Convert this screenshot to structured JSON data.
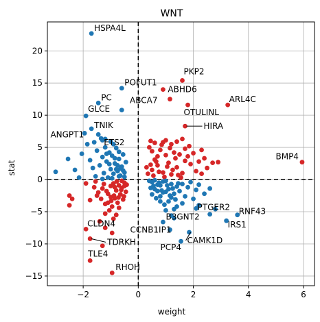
{
  "chart_data": {
    "type": "scatter",
    "title": "WNT",
    "xlabel": "weight",
    "ylabel": "stat",
    "xlim": [
      -3.3,
      6.4
    ],
    "ylim": [
      -16.5,
      24.5
    ],
    "xticks": [
      -2,
      0,
      2,
      4,
      6
    ],
    "yticks": [
      -15,
      -10,
      -5,
      0,
      5,
      10,
      15,
      20
    ],
    "grid": true,
    "reference_lines": {
      "x": 0,
      "y": 0,
      "style": "dashed"
    },
    "colors": {
      "positive": "#d62728",
      "negative": "#1f77b4"
    },
    "annotated_points": [
      {
        "label": "HSPA4L",
        "x": -1.7,
        "y": 22.7,
        "color": "#1f77b4"
      },
      {
        "label": "PKP2",
        "x": 1.6,
        "y": 15.4,
        "color": "#d62728"
      },
      {
        "label": "POFUT1",
        "x": -0.6,
        "y": 14.2,
        "color": "#1f77b4"
      },
      {
        "label": "ABHD6",
        "x": 0.9,
        "y": 14.0,
        "color": "#d62728"
      },
      {
        "label": "PC",
        "x": -1.45,
        "y": 11.9,
        "color": "#1f77b4"
      },
      {
        "label": "ABCA7",
        "x": 1.15,
        "y": 12.5,
        "color": "#d62728"
      },
      {
        "label": "ARL4C",
        "x": 3.25,
        "y": 11.6,
        "color": "#d62728"
      },
      {
        "label": "GLCE",
        "x": -1.9,
        "y": 9.9,
        "color": "#1f77b4"
      },
      {
        "label": "OTULINL",
        "x": 1.8,
        "y": 11.6,
        "color": "#d62728"
      },
      {
        "label": "HIRA",
        "x": 1.7,
        "y": 8.3,
        "color": "#d62728"
      },
      {
        "label": "TNIK",
        "x": -1.7,
        "y": 7.9,
        "color": "#1f77b4"
      },
      {
        "label": "ANGPT1",
        "x": -1.95,
        "y": 7.2,
        "color": "#1f77b4"
      },
      {
        "label": "ETS2",
        "x": -1.3,
        "y": 6.1,
        "color": "#1f77b4"
      },
      {
        "label": "BMP4",
        "x": 5.95,
        "y": 2.7,
        "color": "#d62728"
      },
      {
        "label": "PTGER2",
        "x": 2.1,
        "y": -4.5,
        "color": "#1f77b4"
      },
      {
        "label": "RNF43",
        "x": 3.6,
        "y": -5.5,
        "color": "#1f77b4"
      },
      {
        "label": "B3GNT2",
        "x": 1.3,
        "y": -6.0,
        "color": "#1f77b4"
      },
      {
        "label": "IRS1",
        "x": 3.2,
        "y": -6.4,
        "color": "#1f77b4"
      },
      {
        "label": "CLDN4",
        "x": -1.9,
        "y": -7.7,
        "color": "#d62728"
      },
      {
        "label": "CCNB1IP1",
        "x": 1.15,
        "y": -7.8,
        "color": "#1f77b4"
      },
      {
        "label": "CAMK1D",
        "x": 1.85,
        "y": -8.2,
        "color": "#1f77b4"
      },
      {
        "label": "TDRKH",
        "x": -1.75,
        "y": -9.2,
        "color": "#d62728"
      },
      {
        "label": "PCP4",
        "x": 1.55,
        "y": -9.6,
        "color": "#1f77b4"
      },
      {
        "label": "TLE4",
        "x": -1.75,
        "y": -12.6,
        "color": "#d62728"
      },
      {
        "label": "RHOH",
        "x": -0.95,
        "y": -14.5,
        "color": "#d62728"
      }
    ],
    "other_points_red": [
      [
        -1.75,
        -3.2
      ],
      [
        -1.5,
        -2.5
      ],
      [
        -1.3,
        -1.4
      ],
      [
        -1.2,
        -3.8
      ],
      [
        -1.1,
        -2.2
      ],
      [
        -1.0,
        -1.0
      ],
      [
        -0.95,
        -4.2
      ],
      [
        -0.9,
        -0.6
      ],
      [
        -0.85,
        -2.9
      ],
      [
        -0.8,
        -1.7
      ],
      [
        -0.75,
        -3.6
      ],
      [
        -0.7,
        -0.9
      ],
      [
        -0.65,
        -2.3
      ],
      [
        -0.6,
        -1.3
      ],
      [
        -0.55,
        -3.1
      ],
      [
        -0.5,
        -0.5
      ],
      [
        -0.45,
        -1.9
      ],
      [
        -1.6,
        -1.2
      ],
      [
        -1.45,
        -2.0
      ],
      [
        -1.35,
        -3.0
      ],
      [
        -1.25,
        -0.7
      ],
      [
        -1.15,
        -1.8
      ],
      [
        -1.05,
        -4.8
      ],
      [
        -0.98,
        -3.3
      ],
      [
        -0.88,
        -2.5
      ],
      [
        -0.78,
        -0.3
      ],
      [
        -0.72,
        -2.8
      ],
      [
        -0.62,
        -1.6
      ],
      [
        -0.52,
        -2.6
      ],
      [
        -0.42,
        -0.8
      ],
      [
        -2.5,
        -2.5
      ],
      [
        -2.5,
        -4.0
      ],
      [
        -2.4,
        -3.0
      ],
      [
        -1.9,
        -0.6
      ],
      [
        -1.2,
        -5.3
      ],
      [
        -0.9,
        -6.1
      ],
      [
        -1.3,
        -10.3
      ],
      [
        -1.4,
        -6.5
      ],
      [
        -1.1,
        -3.6
      ],
      [
        -0.7,
        -4.4
      ],
      [
        -0.5,
        -1.0
      ],
      [
        -0.6,
        -0.2
      ],
      [
        -0.85,
        -1.2
      ],
      [
        -1.55,
        -0.3
      ],
      [
        -1.0,
        -2.7
      ],
      [
        -0.8,
        -5.5
      ],
      [
        -1.2,
        -7.5
      ],
      [
        -0.95,
        -8.3
      ],
      [
        0.5,
        1.5
      ],
      [
        0.6,
        3.1
      ],
      [
        0.7,
        2.2
      ],
      [
        0.8,
        4.6
      ],
      [
        0.9,
        1.1
      ],
      [
        1.0,
        3.8
      ],
      [
        1.1,
        2.6
      ],
      [
        1.2,
        0.8
      ],
      [
        1.3,
        4.2
      ],
      [
        1.4,
        1.9
      ],
      [
        0.55,
        0.6
      ],
      [
        0.65,
        2.8
      ],
      [
        0.75,
        1.2
      ],
      [
        0.85,
        5.4
      ],
      [
        0.95,
        0.4
      ],
      [
        1.05,
        2.0
      ],
      [
        1.15,
        4.9
      ],
      [
        1.25,
        1.5
      ],
      [
        1.35,
        3.3
      ],
      [
        1.45,
        0.7
      ],
      [
        0.4,
        5.0
      ],
      [
        0.5,
        4.4
      ],
      [
        0.6,
        5.7
      ],
      [
        0.7,
        3.6
      ],
      [
        0.9,
        5.8
      ],
      [
        1.0,
        6.1
      ],
      [
        1.2,
        5.5
      ],
      [
        1.4,
        5.9
      ],
      [
        1.6,
        6.3
      ],
      [
        1.7,
        4.8
      ],
      [
        1.8,
        3.6
      ],
      [
        1.9,
        2.4
      ],
      [
        2.0,
        4.1
      ],
      [
        2.1,
        1.3
      ],
      [
        2.2,
        2.8
      ],
      [
        2.3,
        0.9
      ],
      [
        2.4,
        3.3
      ],
      [
        2.5,
        1.8
      ],
      [
        2.7,
        2.6
      ],
      [
        2.9,
        2.7
      ],
      [
        1.6,
        1.0
      ],
      [
        1.7,
        2.9
      ],
      [
        1.5,
        3.9
      ],
      [
        1.55,
        0.3
      ],
      [
        0.45,
        2.3
      ],
      [
        0.35,
        0.9
      ],
      [
        0.3,
        1.9
      ],
      [
        0.45,
        6.0
      ],
      [
        1.85,
        5.2
      ],
      [
        2.3,
        4.6
      ]
    ],
    "other_points_blue": [
      [
        -3.0,
        1.2
      ],
      [
        -2.55,
        3.2
      ],
      [
        -2.3,
        1.5
      ],
      [
        -2.15,
        0.3
      ],
      [
        -2.05,
        4.0
      ],
      [
        -1.85,
        5.5
      ],
      [
        -1.75,
        3.0
      ],
      [
        -1.65,
        1.8
      ],
      [
        -1.55,
        0.5
      ],
      [
        -1.5,
        4.5
      ],
      [
        -1.4,
        2.2
      ],
      [
        -1.35,
        6.4
      ],
      [
        -1.3,
        3.5
      ],
      [
        -1.25,
        1.0
      ],
      [
        -1.2,
        5.0
      ],
      [
        -1.15,
        2.8
      ],
      [
        -1.1,
        0.3
      ],
      [
        -1.05,
        4.2
      ],
      [
        -1.0,
        1.6
      ],
      [
        -0.95,
        3.7
      ],
      [
        -0.9,
        0.9
      ],
      [
        -0.85,
        2.5
      ],
      [
        -0.8,
        4.9
      ],
      [
        -0.75,
        1.3
      ],
      [
        -0.7,
        3.2
      ],
      [
        -0.65,
        0.6
      ],
      [
        -0.6,
        2.0
      ],
      [
        -0.55,
        3.9
      ],
      [
        -0.5,
        1.1
      ],
      [
        -0.45,
        2.7
      ],
      [
        -1.45,
        7.0
      ],
      [
        -1.6,
        5.8
      ],
      [
        -1.2,
        6.3
      ],
      [
        -0.9,
        5.5
      ],
      [
        -0.7,
        4.3
      ],
      [
        -0.6,
        10.8
      ],
      [
        -1.3,
        0.1
      ],
      [
        -0.95,
        0.2
      ],
      [
        -0.65,
        1.7
      ],
      [
        -0.5,
        0.4
      ],
      [
        -1.0,
        5.9
      ],
      [
        -1.05,
        2.4
      ],
      [
        -0.85,
        3.3
      ],
      [
        -0.75,
        2.2
      ],
      [
        -0.55,
        1.4
      ],
      [
        -1.15,
        4.0
      ],
      [
        -0.8,
        1.6
      ],
      [
        -0.7,
        0.5
      ],
      [
        0.5,
        -0.4
      ],
      [
        0.6,
        -1.5
      ],
      [
        0.7,
        -0.8
      ],
      [
        0.8,
        -2.6
      ],
      [
        0.9,
        -0.3
      ],
      [
        1.0,
        -1.9
      ],
      [
        1.1,
        -3.4
      ],
      [
        1.2,
        -0.7
      ],
      [
        1.3,
        -2.2
      ],
      [
        1.4,
        -1.1
      ],
      [
        0.55,
        -1.0
      ],
      [
        0.65,
        -2.9
      ],
      [
        0.75,
        -0.5
      ],
      [
        0.85,
        -1.7
      ],
      [
        0.95,
        -3.9
      ],
      [
        1.05,
        -0.9
      ],
      [
        1.15,
        -2.5
      ],
      [
        1.25,
        -1.4
      ],
      [
        1.35,
        -3.1
      ],
      [
        1.45,
        -0.6
      ],
      [
        0.4,
        -0.2
      ],
      [
        0.45,
        -1.3
      ],
      [
        0.5,
        -2.3
      ],
      [
        0.6,
        -0.1
      ],
      [
        0.7,
        -1.8
      ],
      [
        0.8,
        -0.9
      ],
      [
        0.9,
        -2.0
      ],
      [
        1.0,
        -0.2
      ],
      [
        1.1,
        -1.5
      ],
      [
        1.2,
        -2.8
      ],
      [
        1.5,
        -1.8
      ],
      [
        1.6,
        -0.7
      ],
      [
        1.7,
        -2.6
      ],
      [
        1.8,
        -1.2
      ],
      [
        1.9,
        -0.4
      ],
      [
        2.0,
        -3.0
      ],
      [
        2.1,
        -1.6
      ],
      [
        2.2,
        -0.8
      ],
      [
        2.4,
        -2.2
      ],
      [
        2.6,
        -1.4
      ],
      [
        1.0,
        -4.8
      ],
      [
        1.2,
        -5.6
      ],
      [
        1.4,
        -4.2
      ],
      [
        0.9,
        -6.6
      ],
      [
        2.6,
        -5.4
      ],
      [
        2.8,
        -4.6
      ],
      [
        1.6,
        -3.7
      ],
      [
        2.2,
        -4.0
      ],
      [
        0.8,
        -3.4
      ],
      [
        1.3,
        -4.6
      ]
    ]
  }
}
